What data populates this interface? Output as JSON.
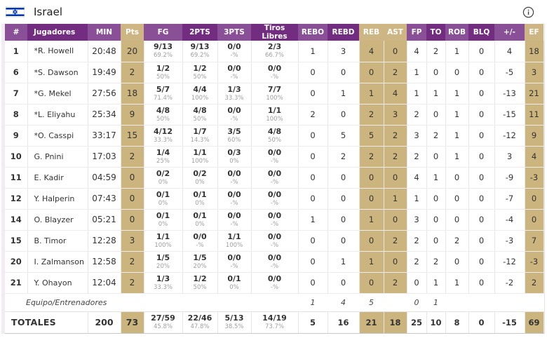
{
  "header": {
    "team": "Israel"
  },
  "colors": {
    "header_purple_dark": "#722c80",
    "header_purple_light": "#8a5097",
    "highlight_tan": "#cbb47e",
    "flag_blue": "#0038b8"
  },
  "table": {
    "columns": [
      {
        "key": "num",
        "label": "#",
        "highlight": false
      },
      {
        "key": "player",
        "label": "Jugadores",
        "highlight": false
      },
      {
        "key": "min",
        "label": "MIN",
        "highlight": false
      },
      {
        "key": "pts",
        "label": "Pts",
        "highlight": true
      },
      {
        "key": "fg",
        "label": "FG",
        "highlight": false
      },
      {
        "key": "p2",
        "label": "2PTS",
        "highlight": false
      },
      {
        "key": "p3",
        "label": "3PTS",
        "highlight": false
      },
      {
        "key": "ft",
        "label": "Tiros Libres",
        "highlight": false
      },
      {
        "key": "rebo",
        "label": "REBO",
        "highlight": false
      },
      {
        "key": "rebd",
        "label": "REBD",
        "highlight": false
      },
      {
        "key": "reb",
        "label": "REB",
        "highlight": true
      },
      {
        "key": "ast",
        "label": "AST",
        "highlight": true
      },
      {
        "key": "fp",
        "label": "FP",
        "highlight": false
      },
      {
        "key": "to",
        "label": "TO",
        "highlight": false
      },
      {
        "key": "rob",
        "label": "ROB",
        "highlight": false
      },
      {
        "key": "blq",
        "label": "BLQ",
        "highlight": false
      },
      {
        "key": "pm",
        "label": "+/-",
        "highlight": false
      },
      {
        "key": "ef",
        "label": "EF",
        "highlight": true
      }
    ],
    "players": [
      {
        "num": "1",
        "name": "*R. Howell",
        "min": "20:48",
        "pts": "20",
        "fg": "9/13",
        "fg_pct": "69.2%",
        "p2": "9/13",
        "p2_pct": "69.2%",
        "p3": "0/0",
        "p3_pct": "-%",
        "ft": "2/3",
        "ft_pct": "66.7%",
        "rebo": "1",
        "rebd": "3",
        "reb": "4",
        "ast": "0",
        "fp": "4",
        "to": "2",
        "rob": "1",
        "blq": "0",
        "pm": "4",
        "ef": "18"
      },
      {
        "num": "6",
        "name": "*S. Dawson",
        "min": "19:49",
        "pts": "2",
        "fg": "1/2",
        "fg_pct": "50%",
        "p2": "1/2",
        "p2_pct": "50%",
        "p3": "0/0",
        "p3_pct": "-%",
        "ft": "0/0",
        "ft_pct": "-%",
        "rebo": "0",
        "rebd": "0",
        "reb": "0",
        "ast": "2",
        "fp": "1",
        "to": "0",
        "rob": "0",
        "blq": "0",
        "pm": "-5",
        "ef": "3"
      },
      {
        "num": "7",
        "name": "*G. Mekel",
        "min": "27:56",
        "pts": "18",
        "fg": "5/7",
        "fg_pct": "71.4%",
        "p2": "4/4",
        "p2_pct": "100%",
        "p3": "1/3",
        "p3_pct": "33.3%",
        "ft": "7/7",
        "ft_pct": "100%",
        "rebo": "0",
        "rebd": "1",
        "reb": "1",
        "ast": "4",
        "fp": "1",
        "to": "1",
        "rob": "1",
        "blq": "0",
        "pm": "-13",
        "ef": "21"
      },
      {
        "num": "8",
        "name": "*L. Eliyahu",
        "min": "25:34",
        "pts": "9",
        "fg": "4/8",
        "fg_pct": "50%",
        "p2": "4/8",
        "p2_pct": "50%",
        "p3": "0/0",
        "p3_pct": "-%",
        "ft": "1/1",
        "ft_pct": "100%",
        "rebo": "2",
        "rebd": "0",
        "reb": "2",
        "ast": "3",
        "fp": "2",
        "to": "0",
        "rob": "1",
        "blq": "0",
        "pm": "-15",
        "ef": "11"
      },
      {
        "num": "9",
        "name": "*O. Casspi",
        "min": "33:17",
        "pts": "15",
        "fg": "4/12",
        "fg_pct": "33.3%",
        "p2": "1/7",
        "p2_pct": "14.3%",
        "p3": "3/5",
        "p3_pct": "60%",
        "ft": "4/8",
        "ft_pct": "50%",
        "rebo": "0",
        "rebd": "5",
        "reb": "5",
        "ast": "2",
        "fp": "3",
        "to": "2",
        "rob": "1",
        "blq": "0",
        "pm": "-12",
        "ef": "9"
      },
      {
        "num": "10",
        "name": "G. Pnini",
        "min": "17:03",
        "pts": "2",
        "fg": "1/4",
        "fg_pct": "25%",
        "p2": "1/1",
        "p2_pct": "100%",
        "p3": "0/3",
        "p3_pct": "0%",
        "ft": "0/0",
        "ft_pct": "-%",
        "rebo": "0",
        "rebd": "2",
        "reb": "2",
        "ast": "2",
        "fp": "2",
        "to": "0",
        "rob": "1",
        "blq": "0",
        "pm": "3",
        "ef": "4"
      },
      {
        "num": "11",
        "name": "E. Kadir",
        "min": "04:59",
        "pts": "0",
        "fg": "0/2",
        "fg_pct": "0%",
        "p2": "0/2",
        "p2_pct": "0%",
        "p3": "0/0",
        "p3_pct": "-%",
        "ft": "0/0",
        "ft_pct": "-%",
        "rebo": "0",
        "rebd": "0",
        "reb": "0",
        "ast": "0",
        "fp": "4",
        "to": "1",
        "rob": "0",
        "blq": "0",
        "pm": "-9",
        "ef": "-3"
      },
      {
        "num": "12",
        "name": "Y. Halperin",
        "min": "07:43",
        "pts": "0",
        "fg": "0/1",
        "fg_pct": "0%",
        "p2": "0/1",
        "p2_pct": "0%",
        "p3": "0/0",
        "p3_pct": "-%",
        "ft": "0/0",
        "ft_pct": "-%",
        "rebo": "0",
        "rebd": "0",
        "reb": "0",
        "ast": "1",
        "fp": "1",
        "to": "0",
        "rob": "0",
        "blq": "0",
        "pm": "-7",
        "ef": "0"
      },
      {
        "num": "14",
        "name": "O. Blayzer",
        "min": "05:21",
        "pts": "0",
        "fg": "0/1",
        "fg_pct": "0%",
        "p2": "0/1",
        "p2_pct": "0%",
        "p3": "0/0",
        "p3_pct": "-%",
        "ft": "0/0",
        "ft_pct": "-%",
        "rebo": "1",
        "rebd": "0",
        "reb": "1",
        "ast": "0",
        "fp": "3",
        "to": "0",
        "rob": "0",
        "blq": "0",
        "pm": "-4",
        "ef": "0"
      },
      {
        "num": "15",
        "name": "B. Timor",
        "min": "12:28",
        "pts": "3",
        "fg": "1/1",
        "fg_pct": "100%",
        "p2": "0/0",
        "p2_pct": "-%",
        "p3": "1/1",
        "p3_pct": "100%",
        "ft": "0/0",
        "ft_pct": "-%",
        "rebo": "0",
        "rebd": "0",
        "reb": "0",
        "ast": "2",
        "fp": "2",
        "to": "0",
        "rob": "2",
        "blq": "0",
        "pm": "-3",
        "ef": "7"
      },
      {
        "num": "20",
        "name": "I. Zalmanson",
        "min": "12:58",
        "pts": "2",
        "fg": "1/5",
        "fg_pct": "20%",
        "p2": "1/5",
        "p2_pct": "20%",
        "p3": "0/0",
        "p3_pct": "-%",
        "ft": "0/0",
        "ft_pct": "-%",
        "rebo": "0",
        "rebd": "1",
        "reb": "1",
        "ast": "0",
        "fp": "2",
        "to": "2",
        "rob": "0",
        "blq": "0",
        "pm": "-12",
        "ef": "-3"
      },
      {
        "num": "21",
        "name": "Y. Ohayon",
        "min": "12:04",
        "pts": "2",
        "fg": "1/3",
        "fg_pct": "33.3%",
        "p2": "1/2",
        "p2_pct": "50%",
        "p3": "0/1",
        "p3_pct": "0%",
        "ft": "0/0",
        "ft_pct": "-%",
        "rebo": "0",
        "rebd": "0",
        "reb": "0",
        "ast": "2",
        "fp": "0",
        "to": "1",
        "rob": "1",
        "blq": "0",
        "pm": "-2",
        "ef": "2"
      }
    ],
    "team_row": {
      "label": "Equipo/Entrenadores",
      "rebo": "1",
      "rebd": "4",
      "reb": "5",
      "ast": "",
      "fp": "0",
      "to": "1",
      "rob": "",
      "blq": "",
      "pm": "",
      "ef": ""
    },
    "totals": {
      "label": "TOTALES",
      "min": "200",
      "pts": "73",
      "fg": "27/59",
      "fg_pct": "45.8%",
      "p2": "22/46",
      "p2_pct": "47.8%",
      "p3": "5/13",
      "p3_pct": "38.5%",
      "ft": "14/19",
      "ft_pct": "73.7%",
      "rebo": "5",
      "rebd": "16",
      "reb": "21",
      "ast": "18",
      "fp": "25",
      "to": "10",
      "rob": "8",
      "blq": "0",
      "pm": "-15",
      "ef": "69"
    }
  }
}
